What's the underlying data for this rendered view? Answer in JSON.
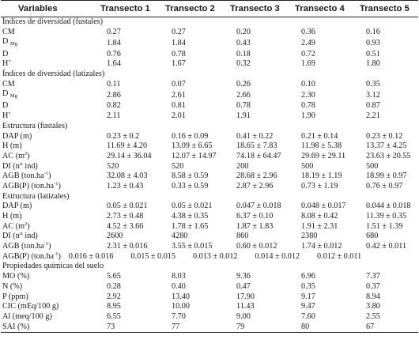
{
  "header": {
    "variables": "Variables",
    "t1": "Transecto 1",
    "t2": "Transecto 2",
    "t3": "Transecto 3",
    "t4": "Transecto 4",
    "t5": "Transecto 5"
  },
  "s1": {
    "title": "Índices de diversidad (fustales)",
    "cm": {
      "label": "CM",
      "v": [
        "0.27",
        "0.27",
        "0.20",
        "0.36",
        "0.16"
      ]
    },
    "dmg": {
      "label": "D",
      "sub": "Mg",
      "v": [
        "1.84",
        "1.84",
        "0.43",
        "2.49",
        "0.93"
      ]
    },
    "d": {
      "label": "D",
      "v": [
        "0.76",
        "0.78",
        "0.18",
        "0.72",
        "0.51"
      ]
    },
    "h": {
      "label": "H’",
      "v": [
        "1.64",
        "1.67",
        "0.32",
        "1.69",
        "1.80"
      ]
    }
  },
  "s2": {
    "title": "Índices de diversidad (latizales)",
    "cm": {
      "label": "CM",
      "v": [
        "0.11",
        "0.07",
        "0.26",
        "0.10",
        "0.35"
      ]
    },
    "dmg": {
      "label": "D",
      "sub": "Mg",
      "v": [
        "2.86",
        "2.61",
        "2.66",
        "2.30",
        "3.12"
      ]
    },
    "d": {
      "label": "D",
      "v": [
        "0.82",
        "0.81",
        "0.78",
        "0.78",
        "0.87"
      ]
    },
    "h": {
      "label": "H’",
      "v": [
        "2.11",
        "2.01",
        "1.91",
        "1.90",
        "2.21"
      ]
    }
  },
  "s3": {
    "title": "Estructura (fustales)",
    "dap": {
      "label": "DAP (m)",
      "v": [
        "0.23 ± 0.2",
        "0.16 ± 0.09",
        "0.41 ± 0.22",
        "0.21 ± 0.14",
        "0.23 ± 0.12"
      ]
    },
    "h": {
      "label": "H (m)",
      "v": [
        "11.69 ± 4.20",
        "13.09 ± 6.65",
        "18.65 ± 7.83",
        "11.98 ± 5.38",
        "13.37 ± 4.25"
      ]
    },
    "ac": {
      "label": "AC (m",
      "sup": "2",
      "label_end": ")",
      "v": [
        "29.14 ± 36.04",
        "12.07 ± 14.97",
        "74.18 ± 64.47",
        "29.69 ± 29.11",
        "23.63 ± 20.55"
      ]
    },
    "di": {
      "label": "DI (n° ind)",
      "v": [
        "520",
        "520",
        "200",
        "500",
        "500"
      ]
    },
    "agb": {
      "label": "AGB (ton.ha",
      "sup": "-1",
      "label_end": ")",
      "v": [
        "32.08 ± 4.03",
        "8.58 ± 0.59",
        "28.68 ± 2.96",
        "18.19 ± 1.19",
        "18.99 ± 0.97"
      ]
    },
    "agbp": {
      "label": "AGB(P) (ton.ha",
      "sup": "-1",
      "label_end": ")",
      "v": [
        "1.23 ± 0.43",
        "0.33 ± 0.59",
        "2.87 ± 2.96",
        "0.73 ± 1.19",
        "0.76 ± 0.97"
      ]
    }
  },
  "s4": {
    "title": "Estructura (latizales)",
    "dap": {
      "label": "DAP (m)",
      "v": [
        "0.05 ± 0.021",
        "0.05 ± 0.021",
        "0.047 ± 0.018",
        "0.048 ± 0.017",
        "0.044 ± 0.018"
      ]
    },
    "h": {
      "label": "H (m)",
      "v": [
        "2.73 ± 0.48",
        "4.38 ± 0.35",
        "6.37 ± 0.10",
        "8.08 ± 0.42",
        "11.39 ± 0.35"
      ]
    },
    "ac": {
      "label": "AC (m",
      "sup": "2",
      "label_end": ")",
      "v": [
        "4.52 ± 3.66",
        "1.78 ± 1.65",
        "1.87 ± 1.83",
        "1.91 ± 2.31",
        "1.51 ± 1.39"
      ]
    },
    "di": {
      "label": "DI (n° ind)",
      "v": [
        "2600",
        "4280",
        "860",
        "2380",
        "680"
      ]
    },
    "agb": {
      "label": "AGB (ton.ha",
      "sup": "-1",
      "label_end": ")",
      "v": [
        "2.31 ± 0.016",
        "3.55 ± 0.015",
        "0.60 ± 0.012",
        "1.74 ± 0.012",
        "0.42 ± 0.011"
      ]
    },
    "agbp": {
      "label": "AGB(P) (ton.ha",
      "sup": "-1",
      "label_end": ")",
      "v": [
        "0.016 ± 0.016",
        "0.015 ± 0.015",
        "0.013 ± 0.012",
        "0.014 ± 0.012",
        "0.012 ± 0.011"
      ]
    }
  },
  "s5": {
    "title": "Propiedades químicas del suelo",
    "mo": {
      "label": "MO (%)",
      "v": [
        "5.65",
        "8.03",
        "9.36",
        "6.96",
        "7.37"
      ]
    },
    "n": {
      "label": "N (%)",
      "v": [
        "0.28",
        "0.40",
        "0.47",
        "0.35",
        "0.37"
      ]
    },
    "p": {
      "label": "P (ppm)",
      "v": [
        "2.92",
        "13.40",
        "17.90",
        "9.17",
        "8.94"
      ]
    },
    "cic": {
      "label": "CIC (mEq/100 g)",
      "v": [
        "8.95",
        "10.00",
        "11.43",
        "9.47",
        "3.80"
      ]
    },
    "al": {
      "label": "Al (meq/100 g)",
      "v": [
        "6.55",
        "7.70",
        "9.00",
        "7.60",
        "2.55"
      ]
    },
    "sai": {
      "label": "SAI (%)",
      "v": [
        "73",
        "77",
        "79",
        "80",
        "67"
      ]
    }
  }
}
